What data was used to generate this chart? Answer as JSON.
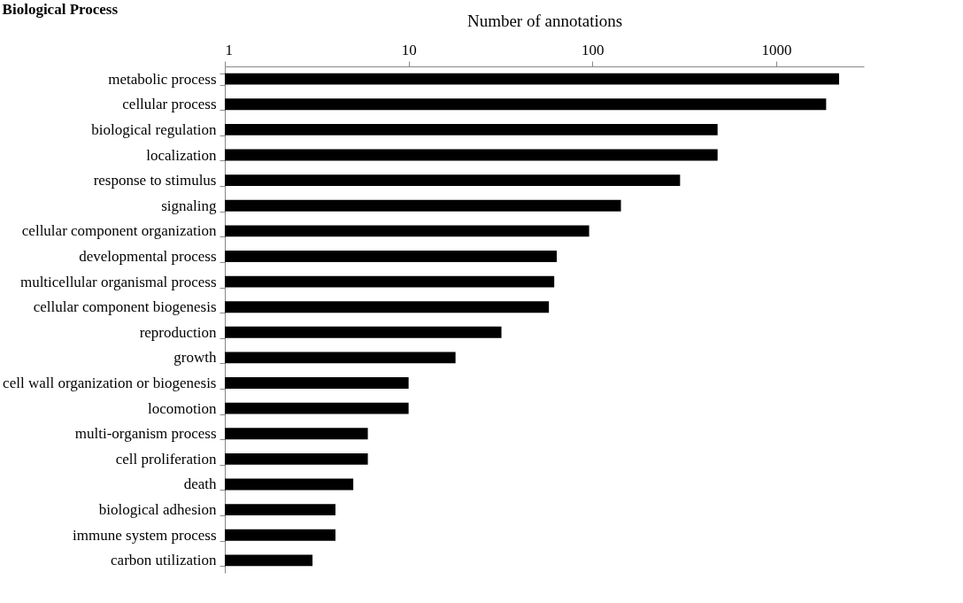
{
  "chart_data": {
    "type": "bar",
    "orientation": "horizontal",
    "title": "Biological Process",
    "xlabel": "Number of annotations",
    "categories": [
      "metabolic process",
      "cellular process",
      "biological regulation",
      "localization",
      "response to stimulus",
      "signaling",
      "cellular component organization",
      "developmental process",
      "multicellular organismal process",
      "cellular component biogenesis",
      "reproduction",
      "growth",
      "cell wall organization or biogenesis",
      "locomotion",
      "multi-organism process",
      "cell proliferation",
      "death",
      "biological adhesion",
      "immune system process",
      "carbon utilization"
    ],
    "values": [
      2200,
      1870,
      480,
      480,
      300,
      143,
      96,
      64,
      62,
      58,
      32,
      18,
      10,
      10,
      6,
      6,
      5,
      4,
      4,
      3
    ],
    "color": "#000000",
    "log": "x",
    "xlim": [
      1,
      3000
    ],
    "xticks": [
      1,
      10,
      100,
      1000
    ]
  }
}
